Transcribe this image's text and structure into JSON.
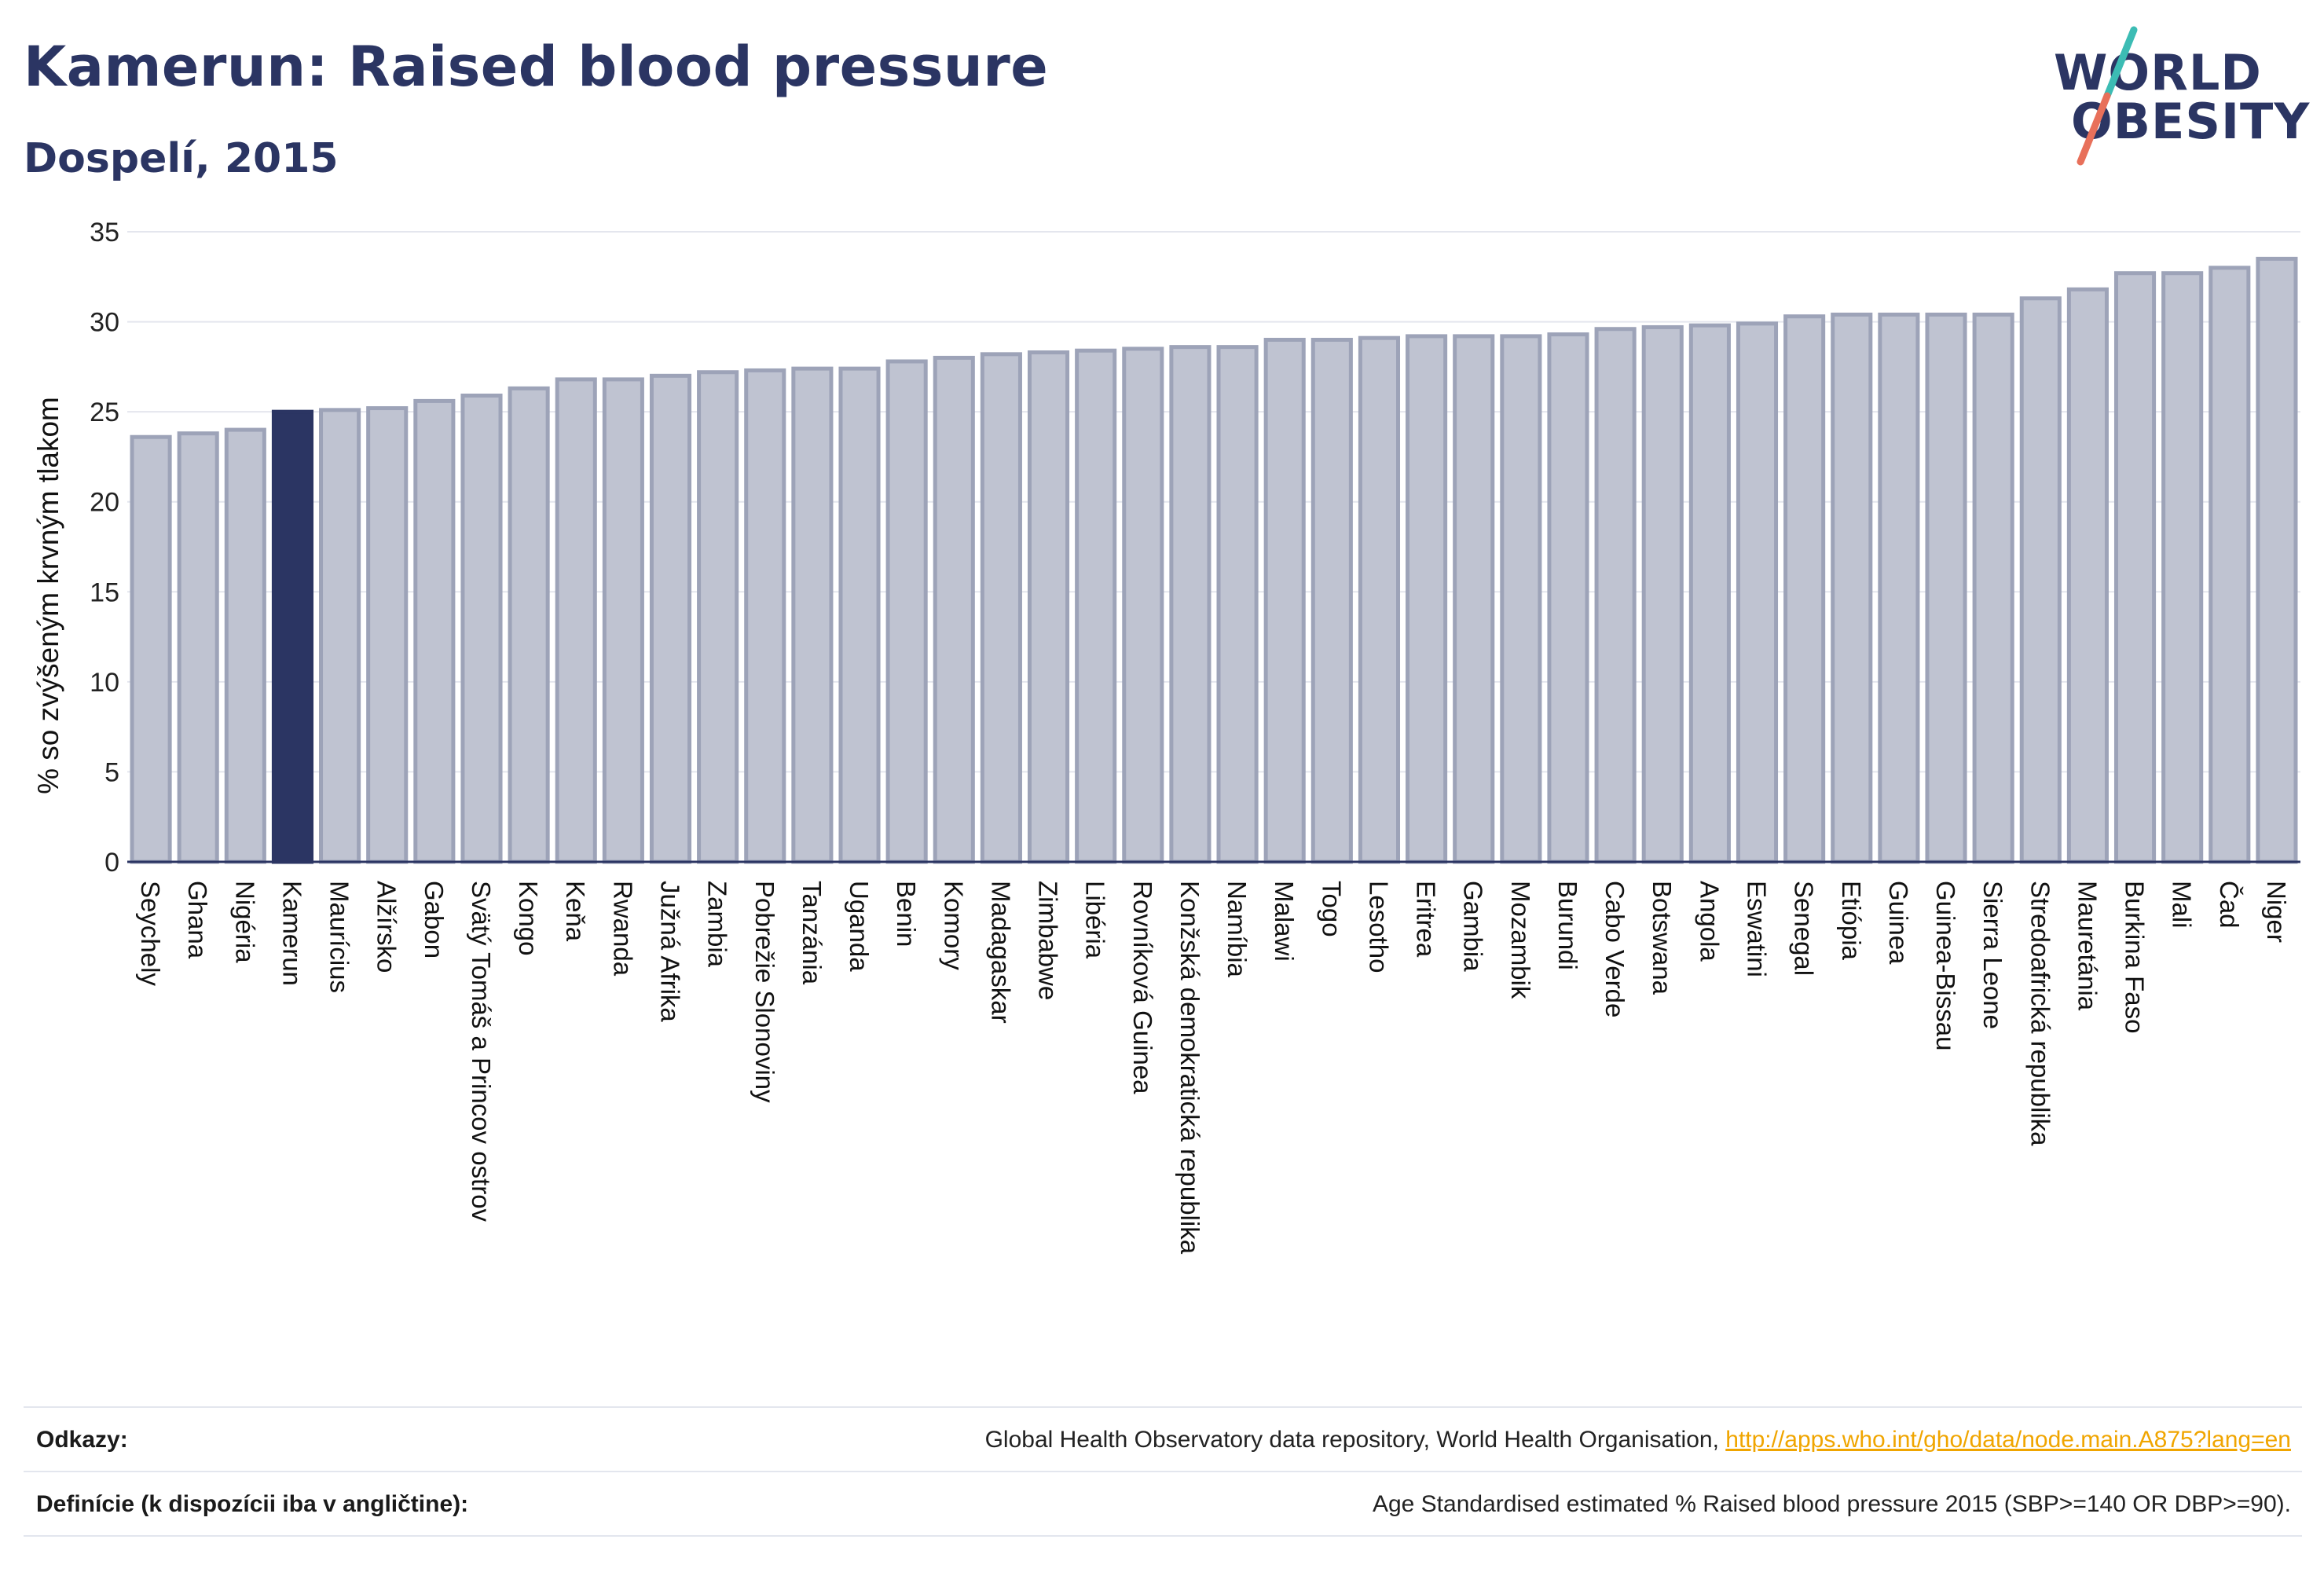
{
  "header": {
    "title": "Kamerun: Raised blood pressure",
    "subtitle": "Dospelí, 2015"
  },
  "logo": {
    "line1": "WORLD",
    "line2": "OBESITY",
    "colors": {
      "text": "#2b3563",
      "slash_top": "#3cbcb4",
      "slash_bottom": "#e8705a"
    }
  },
  "chart_data": {
    "type": "bar",
    "title": "Kamerun: Raised blood pressure",
    "subtitle": "Dospelí, 2015",
    "ylabel": "% so zvýšeným krvným tlakom",
    "xlabel": "",
    "ylim": [
      0,
      35
    ],
    "yticks": [
      0,
      5,
      10,
      15,
      20,
      25,
      30,
      35
    ],
    "grid": true,
    "highlight": "Kamerun",
    "colors": {
      "bar": "#bfc3d1",
      "bar_border": "#9da3b8",
      "highlight": "#2b3563"
    },
    "categories": [
      "Seychely",
      "Ghana",
      "Nigéria",
      "Kamerun",
      "Maurícius",
      "Alžírsko",
      "Gabon",
      "Svätý Tomáš a Princov ostrov",
      "Kongo",
      "Keňa",
      "Rwanda",
      "Južná Afrika",
      "Zambia",
      "Pobrežie Slonoviny",
      "Tanzánia",
      "Uganda",
      "Benin",
      "Komory",
      "Madagaskar",
      "Zimbabwe",
      "Libéria",
      "Rovníková Guinea",
      "Konžská demokratická republika",
      "Namíbia",
      "Malawi",
      "Togo",
      "Lesotho",
      "Eritrea",
      "Gambia",
      "Mozambik",
      "Burundi",
      "Cabo Verde",
      "Botswana",
      "Angola",
      "Eswatini",
      "Senegal",
      "Etiópia",
      "Guinea",
      "Guinea-Bissau",
      "Sierra Leone",
      "Stredoafrická republika",
      "Mauretánia",
      "Burkina Faso",
      "Mali",
      "Čad",
      "Niger"
    ],
    "values": [
      23.6,
      23.8,
      24.0,
      25.0,
      25.1,
      25.2,
      25.6,
      25.9,
      26.3,
      26.8,
      26.8,
      27.0,
      27.2,
      27.3,
      27.4,
      27.4,
      27.8,
      28.0,
      28.2,
      28.3,
      28.4,
      28.5,
      28.6,
      28.6,
      29.0,
      29.0,
      29.1,
      29.2,
      29.2,
      29.2,
      29.3,
      29.6,
      29.7,
      29.8,
      29.9,
      30.3,
      30.4,
      30.4,
      30.4,
      30.4,
      31.3,
      31.8,
      32.7,
      32.7,
      33.0,
      33.5
    ]
  },
  "footer": {
    "references_label": "Odkazy:",
    "references_text": "Global Health Observatory data repository, World Health Organisation,",
    "references_link": "http://apps.who.int/gho/data/node.main.A875?lang=en",
    "definitions_label": "Definície (k dispozícii iba v angličtine):",
    "definitions_text": "Age Standardised estimated % Raised blood pressure 2015 (SBP>=140 OR DBP>=90)."
  }
}
